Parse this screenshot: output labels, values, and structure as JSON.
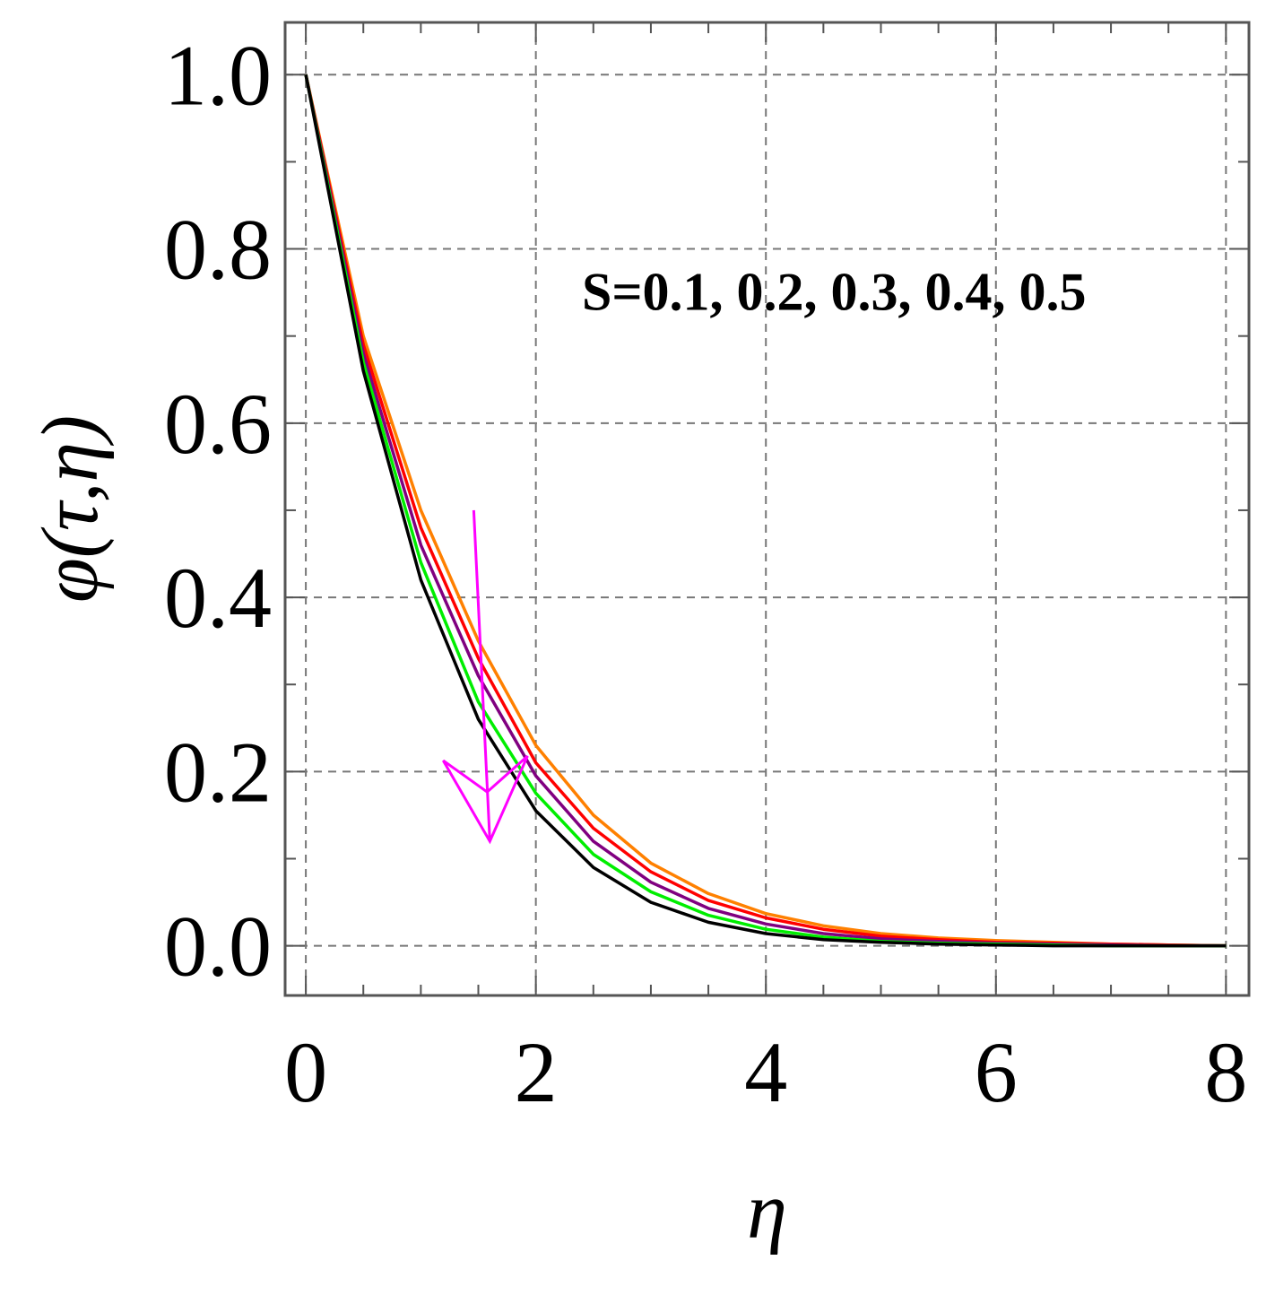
{
  "chart_data": {
    "type": "line",
    "title": "",
    "xlabel": "η",
    "ylabel": "φ(τ,η)",
    "xlim": [
      -0.18,
      8.2
    ],
    "ylim": [
      -0.057,
      1.06
    ],
    "xticks": [
      0,
      2,
      4,
      6,
      8
    ],
    "xtick_labels": [
      "0",
      "2",
      "4",
      "6",
      "8"
    ],
    "yticks": [
      0.0,
      0.2,
      0.4,
      0.6,
      0.8,
      1.0
    ],
    "ytick_labels": [
      "0.0",
      "0.2",
      "0.4",
      "0.6",
      "0.8",
      "1.0"
    ],
    "grid": true,
    "grid_style": "dashed",
    "x": [
      0,
      0.5,
      1,
      1.5,
      2,
      2.5,
      3,
      3.5,
      4,
      4.5,
      5,
      5.5,
      6,
      6.5,
      7,
      7.5,
      8
    ],
    "series": [
      {
        "color": "#ff8000",
        "values": [
          1.0,
          0.7,
          0.5,
          0.35,
          0.23,
          0.15,
          0.095,
          0.06,
          0.037,
          0.023,
          0.014,
          0.009,
          0.006,
          0.004,
          0.002,
          0.001,
          0.0
        ]
      },
      {
        "color": "#ff0000",
        "values": [
          1.0,
          0.69,
          0.48,
          0.33,
          0.21,
          0.135,
          0.085,
          0.052,
          0.032,
          0.019,
          0.011,
          0.007,
          0.004,
          0.003,
          0.002,
          0.001,
          0.0
        ]
      },
      {
        "color": "#800080",
        "values": [
          1.0,
          0.68,
          0.46,
          0.31,
          0.195,
          0.12,
          0.073,
          0.043,
          0.025,
          0.014,
          0.008,
          0.005,
          0.003,
          0.002,
          0.001,
          0.0,
          0.0
        ]
      },
      {
        "color": "#00ee00",
        "values": [
          1.0,
          0.67,
          0.44,
          0.28,
          0.175,
          0.105,
          0.062,
          0.035,
          0.019,
          0.01,
          0.005,
          0.003,
          0.002,
          0.001,
          0.0,
          0.0,
          0.0
        ]
      },
      {
        "color": "#000000",
        "values": [
          1.0,
          0.66,
          0.42,
          0.26,
          0.155,
          0.09,
          0.05,
          0.027,
          0.014,
          0.007,
          0.004,
          0.002,
          0.001,
          0.0,
          0.0,
          0.0,
          0.0
        ]
      }
    ],
    "annotations": [
      {
        "text": "S=0.1, 0.2, 0.3, 0.4, 0.5",
        "x": 2.4,
        "y": 0.73
      },
      {
        "type": "arrow",
        "color": "#ff00ff",
        "from": [
          1.46,
          0.5
        ],
        "to": [
          1.6,
          0.12
        ]
      }
    ]
  }
}
